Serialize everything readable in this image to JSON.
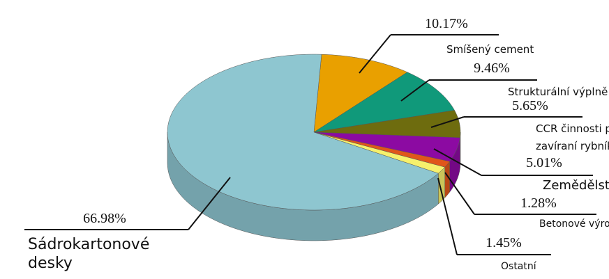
{
  "chart_data": {
    "type": "pie3d",
    "categories": [
      "Sádrokartonové desky",
      "Smíšený cement",
      "Strukturální výplně",
      "CCR činnosti při zavíraní rybníků",
      "Zemědělství",
      "Betonové výrobky",
      "Ostatní"
    ],
    "values": [
      66.98,
      10.17,
      9.46,
      5.65,
      5.01,
      1.28,
      1.45
    ],
    "value_labels": [
      "66.98%",
      "10.17%",
      "9.46%",
      "5.65%",
      "5.01%",
      "1.28%",
      "1.45%"
    ],
    "colors": [
      "#8ec6d0",
      "#e9a000",
      "#10997a",
      "#6e6c0e",
      "#8c0aa2",
      "#e0561a",
      "#f6f06c"
    ]
  }
}
